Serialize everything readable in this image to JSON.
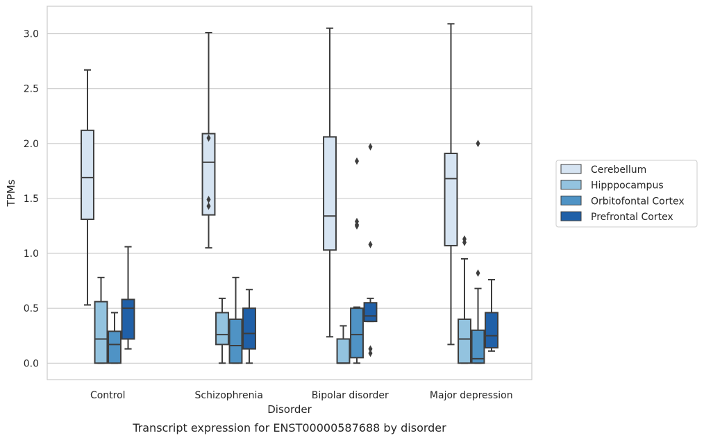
{
  "chart_data": {
    "type": "box",
    "xlabel": "Disorder",
    "ylabel": "TPMs",
    "caption": "Transcript expression for ENST00000587688 by disorder",
    "categories": [
      "Control",
      "Schizophrenia",
      "Bipolar disorder",
      "Major depression"
    ],
    "ylim": [
      -0.15,
      3.25
    ],
    "yticks": [
      "0.0",
      "0.5",
      "1.0",
      "1.5",
      "2.0",
      "2.5",
      "3.0"
    ],
    "grid": "horizontal",
    "legend_position": "right",
    "series": [
      {
        "name": "Cerebellum",
        "color": "#d6e4f2",
        "boxes": [
          {
            "whislo": 0.53,
            "q1": 1.31,
            "med": 1.69,
            "q3": 2.12,
            "whishi": 2.67,
            "fliers": []
          },
          {
            "whislo": 1.05,
            "q1": 1.35,
            "med": 1.83,
            "q3": 2.09,
            "whishi": 3.01,
            "fliers": [
              1.43,
              1.49,
              2.05
            ]
          },
          {
            "whislo": 0.24,
            "q1": 1.03,
            "med": 1.34,
            "q3": 2.06,
            "whishi": 3.05,
            "fliers": []
          },
          {
            "whislo": 0.17,
            "q1": 1.07,
            "med": 1.68,
            "q3": 1.91,
            "whishi": 3.09,
            "fliers": []
          }
        ]
      },
      {
        "name": "Hipppocampus",
        "color": "#93c3df",
        "boxes": [
          {
            "whislo": 0.0,
            "q1": 0.0,
            "med": 0.22,
            "q3": 0.56,
            "whishi": 0.78,
            "fliers": []
          },
          {
            "whislo": 0.0,
            "q1": 0.17,
            "med": 0.26,
            "q3": 0.46,
            "whishi": 0.59,
            "fliers": []
          },
          {
            "whislo": 0.0,
            "q1": 0.0,
            "med": 0.0,
            "q3": 0.22,
            "whishi": 0.34,
            "fliers": []
          },
          {
            "whislo": 0.0,
            "q1": 0.0,
            "med": 0.22,
            "q3": 0.4,
            "whishi": 0.95,
            "fliers": [
              1.1,
              1.13
            ]
          }
        ]
      },
      {
        "name": "Orbitofontal Cortex",
        "color": "#4f93c5",
        "boxes": [
          {
            "whislo": 0.0,
            "q1": 0.0,
            "med": 0.17,
            "q3": 0.29,
            "whishi": 0.46,
            "fliers": []
          },
          {
            "whislo": 0.0,
            "q1": 0.0,
            "med": 0.16,
            "q3": 0.4,
            "whishi": 0.78,
            "fliers": []
          },
          {
            "whislo": 0.0,
            "q1": 0.05,
            "med": 0.26,
            "q3": 0.5,
            "whishi": 0.51,
            "fliers": [
              1.25,
              1.26,
              1.29,
              1.84
            ]
          },
          {
            "whislo": 0.0,
            "q1": 0.0,
            "med": 0.04,
            "q3": 0.3,
            "whishi": 0.68,
            "fliers": [
              0.82,
              2.0
            ]
          }
        ]
      },
      {
        "name": "Prefrontal Cortex",
        "color": "#2060a8",
        "boxes": [
          {
            "whislo": 0.13,
            "q1": 0.22,
            "med": 0.5,
            "q3": 0.58,
            "whishi": 1.06,
            "fliers": []
          },
          {
            "whislo": 0.0,
            "q1": 0.13,
            "med": 0.27,
            "q3": 0.5,
            "whishi": 0.67,
            "fliers": []
          },
          {
            "whislo": 0.38,
            "q1": 0.38,
            "med": 0.43,
            "q3": 0.55,
            "whishi": 0.59,
            "fliers": [
              0.09,
              0.13,
              1.08,
              1.97
            ]
          },
          {
            "whislo": 0.11,
            "q1": 0.14,
            "med": 0.25,
            "q3": 0.46,
            "whishi": 0.76,
            "fliers": []
          }
        ]
      }
    ]
  }
}
